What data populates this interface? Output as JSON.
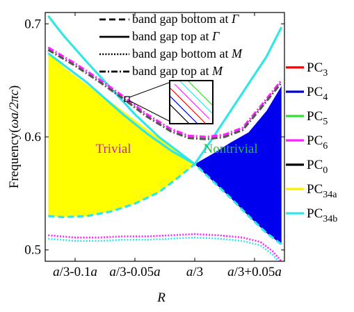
{
  "chart_data": {
    "type": "line",
    "title": "",
    "xlabel": "R",
    "ylabel": "Frequency(ωa/2πc)",
    "x_ticks": [
      {
        "v": -0.1,
        "text": "a/3-0.1a"
      },
      {
        "v": -0.05,
        "text": "a/3-0.05a"
      },
      {
        "v": 0.0,
        "text": "a/3"
      },
      {
        "v": 0.05,
        "text": "a/3+0.05a"
      }
    ],
    "y_ticks": [
      {
        "v": 0.5,
        "text": "0.5"
      },
      {
        "v": 0.6,
        "text": "0.6"
      },
      {
        "v": 0.7,
        "text": "0.7"
      }
    ],
    "xlim": [
      -0.125,
      0.075
    ],
    "ylim": [
      0.49,
      0.71
    ],
    "line_style_legend": [
      {
        "label": "band gap bottom at Γ",
        "dash": "dashed"
      },
      {
        "label": "band gap top at Γ",
        "dash": "solid"
      },
      {
        "label": "band gap bottom at M",
        "dash": "dotted"
      },
      {
        "label": "band gap top at M",
        "dash": "dashdot"
      }
    ],
    "series_legend": [
      {
        "name": "PC",
        "sub": "3",
        "color": "#ff0000"
      },
      {
        "name": "PC",
        "sub": "4",
        "color": "#0000cc"
      },
      {
        "name": "PC",
        "sub": "5",
        "color": "#33dd33"
      },
      {
        "name": "PC",
        "sub": "6",
        "color": "#ff22ff"
      },
      {
        "name": "PC",
        "sub": "0",
        "color": "#000000"
      },
      {
        "name": "PC",
        "sub": "34a",
        "color": "#ffee00"
      },
      {
        "name": "PC",
        "sub": "34b",
        "color": "#33e6e6"
      }
    ],
    "regions": [
      {
        "label": "Trivial",
        "fill": "#ffff00",
        "text_color": "#cc2299",
        "x": [
          -0.1225,
          -0.11,
          -0.09,
          -0.07,
          -0.05,
          -0.03,
          -0.015,
          0.0,
          -0.015,
          -0.03,
          -0.05,
          -0.07,
          -0.09,
          -0.11,
          -0.1225
        ],
        "y": [
          0.675,
          0.662,
          0.646,
          0.631,
          0.615,
          0.599,
          0.587,
          0.576,
          0.563,
          0.551,
          0.541,
          0.534,
          0.53,
          0.529,
          0.53
        ]
      },
      {
        "label": "Nontrivial",
        "fill": "#0000ee",
        "text_color": "#22bb44",
        "x": [
          0.0,
          0.015,
          0.03,
          0.045,
          0.06,
          0.0725,
          0.0725,
          0.06,
          0.045,
          0.03,
          0.015,
          0.0
        ],
        "y": [
          0.576,
          0.585,
          0.595,
          0.604,
          0.623,
          0.645,
          0.505,
          0.515,
          0.53,
          0.546,
          0.561,
          0.576
        ]
      }
    ],
    "series": [
      {
        "style": "solid",
        "color": "#33e6e6",
        "x": [
          -0.1225,
          -0.11,
          -0.09,
          -0.07,
          -0.05,
          -0.03,
          -0.015,
          0.0
        ],
        "y": [
          0.707,
          0.69,
          0.666,
          0.643,
          0.62,
          0.6,
          0.588,
          0.576
        ]
      },
      {
        "style": "solid",
        "color": "#33e6e6",
        "x": [
          0.0,
          0.015,
          0.03,
          0.045,
          0.06,
          0.0725
        ],
        "y": [
          0.576,
          0.599,
          0.623,
          0.647,
          0.671,
          0.697
        ]
      },
      {
        "style": "solid",
        "color": "#33e6e6",
        "x": [
          -0.1225,
          -0.09,
          -0.06,
          -0.04,
          -0.02,
          0.0
        ],
        "y": [
          0.674,
          0.648,
          0.62,
          0.603,
          0.588,
          0.576
        ]
      },
      {
        "style": "dashdot",
        "color": "#ff22ff",
        "x": [
          -0.1225,
          -0.1,
          -0.08,
          -0.06,
          -0.04,
          -0.02,
          -0.005,
          0.01,
          0.025,
          0.04,
          0.055,
          0.0725
        ],
        "y": [
          0.679,
          0.665,
          0.651,
          0.636,
          0.62,
          0.607,
          0.601,
          0.6,
          0.602,
          0.608,
          0.627,
          0.65
        ]
      },
      {
        "style": "dashdot",
        "color": "#555555",
        "x": [
          -0.1225,
          -0.1,
          -0.08,
          -0.06,
          -0.04,
          -0.02,
          -0.005,
          0.01,
          0.025,
          0.04,
          0.055,
          0.0725
        ],
        "y": [
          0.677,
          0.663,
          0.649,
          0.634,
          0.618,
          0.605,
          0.599,
          0.598,
          0.6,
          0.606,
          0.625,
          0.648
        ]
      },
      {
        "style": "dashed",
        "color": "#33e6e6",
        "x": [
          -0.1225,
          -0.11,
          -0.09,
          -0.07,
          -0.05,
          -0.03,
          -0.015,
          0.0,
          0.015,
          0.03,
          0.045,
          0.06,
          0.0725
        ],
        "y": [
          0.53,
          0.529,
          0.53,
          0.534,
          0.541,
          0.551,
          0.563,
          0.576,
          0.561,
          0.546,
          0.53,
          0.515,
          0.505
        ]
      },
      {
        "style": "dotted",
        "color": "#ff22ff",
        "x": [
          -0.1225,
          -0.1,
          -0.08,
          -0.06,
          -0.04,
          -0.02,
          0.0,
          0.02,
          0.04,
          0.055,
          0.065,
          0.0725
        ],
        "y": [
          0.513,
          0.511,
          0.511,
          0.512,
          0.512,
          0.513,
          0.514,
          0.513,
          0.511,
          0.507,
          0.499,
          0.49
        ]
      },
      {
        "style": "dotted",
        "color": "#33e6e6",
        "x": [
          -0.1225,
          -0.1,
          -0.08,
          -0.06,
          -0.04,
          -0.02,
          0.0,
          0.02,
          0.04,
          0.055,
          0.065,
          0.0725
        ],
        "y": [
          0.51,
          0.508,
          0.508,
          0.509,
          0.509,
          0.51,
          0.511,
          0.51,
          0.508,
          0.504,
          0.496,
          0.487
        ]
      }
    ],
    "inset_marker": {
      "x": -0.0586,
      "y": 0.6315
    }
  }
}
